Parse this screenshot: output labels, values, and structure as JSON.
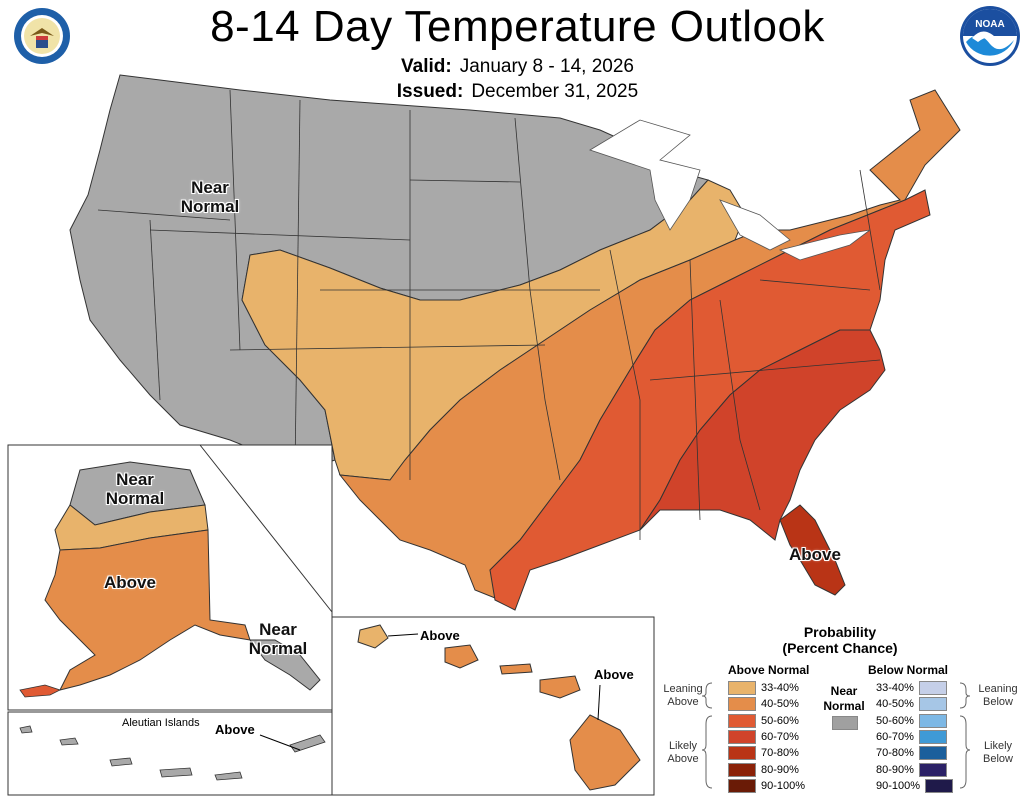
{
  "title": "8-14 Day Temperature Outlook",
  "valid_label": "Valid:",
  "valid_value": "January 8 - 14, 2026",
  "issued_label": "Issued:",
  "issued_value": "December 31, 2025",
  "noaa_logo_text": "NOAA",
  "map_labels": {
    "conus_near_normal": "Near Normal",
    "conus_above": "Above",
    "alaska_near_normal_top": "Near Normal",
    "alaska_above": "Above",
    "alaska_near_normal_se": "Near Normal",
    "aleutian_islands": "Aleutian Islands",
    "aleutian_above": "Above",
    "hawaii_above_1": "Above",
    "hawaii_above_2": "Above"
  },
  "legend": {
    "title_line1": "Probability",
    "title_line2": "(Percent Chance)",
    "above_header": "Above Normal",
    "below_header": "Below Normal",
    "near_normal": "Near Normal",
    "leaning_above": "Leaning Above",
    "likely_above": "Likely Above",
    "leaning_below": "Leaning Below",
    "likely_below": "Likely Below",
    "above_bins": [
      {
        "label": "33-40%",
        "color": "#e8b36b"
      },
      {
        "label": "40-50%",
        "color": "#e48d4a"
      },
      {
        "label": "50-60%",
        "color": "#e05a33"
      },
      {
        "label": "60-70%",
        "color": "#d0432a"
      },
      {
        "label": "70-80%",
        "color": "#b93416"
      },
      {
        "label": "80-90%",
        "color": "#8b2208"
      },
      {
        "label": "90-100%",
        "color": "#6a1b06"
      }
    ],
    "below_bins": [
      {
        "label": "33-40%",
        "color": "#c5cfe8"
      },
      {
        "label": "40-50%",
        "color": "#a6c6e6"
      },
      {
        "label": "50-60%",
        "color": "#7db8e5"
      },
      {
        "label": "60-70%",
        "color": "#3f9ad6"
      },
      {
        "label": "70-80%",
        "color": "#1b5f9c"
      },
      {
        "label": "80-90%",
        "color": "#2b2166"
      },
      {
        "label": "90-100%",
        "color": "#1f1a4a"
      }
    ],
    "near_normal_color": "#a0a0a0"
  }
}
